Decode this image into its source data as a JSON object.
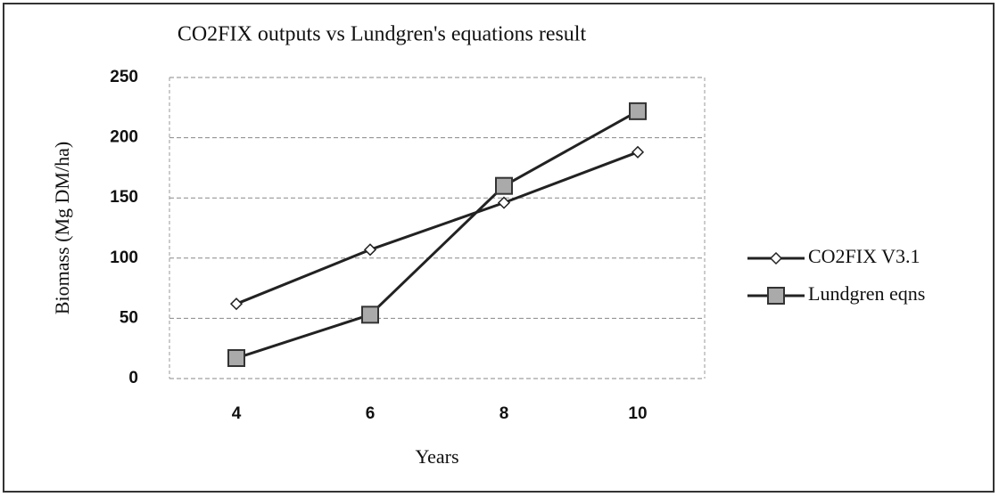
{
  "chart_data": {
    "type": "line",
    "title": "CO2FIX outputs vs Lundgren's equations result",
    "x_label": "Years",
    "y_label": "Biomass  (Mg DM/ha)",
    "categories": [
      "4",
      "6",
      "8",
      "10"
    ],
    "series": [
      {
        "name": "CO2FIX V3.1",
        "color": "#222222",
        "marker": "diamond",
        "values": [
          62,
          107,
          146,
          188
        ]
      },
      {
        "name": "Lundgren eqns",
        "color": "#222222",
        "marker": "square",
        "values": [
          17,
          53,
          160,
          222
        ]
      }
    ],
    "ylim": [
      0,
      250
    ],
    "yticks": [
      0,
      50,
      100,
      150,
      200,
      250
    ],
    "grid": true,
    "legend": "right"
  }
}
